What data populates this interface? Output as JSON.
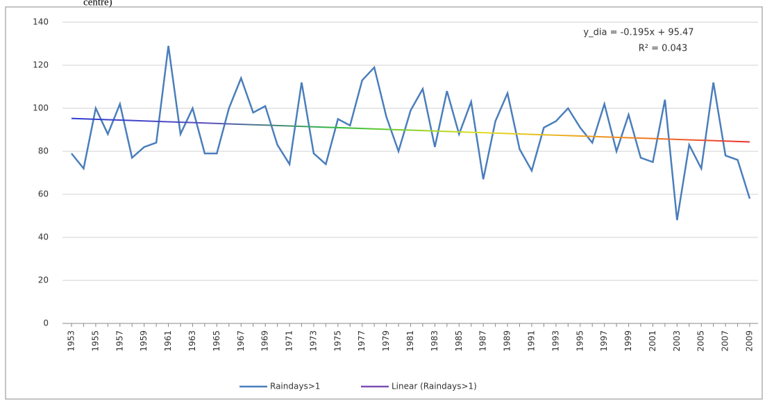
{
  "chart_data": {
    "type": "line",
    "caption": "centre)",
    "annotations": [
      "y_dia = -0.195x + 95.47",
      "R² = 0.043"
    ],
    "categories": [
      "1953",
      null,
      "1955",
      null,
      "1957",
      null,
      "1959",
      null,
      "1961",
      null,
      "1963",
      null,
      "1965",
      null,
      "1967",
      null,
      "1969",
      null,
      "1971",
      null,
      "1973",
      null,
      "1975",
      null,
      "1977",
      null,
      "1979",
      null,
      "1981",
      null,
      "1983",
      null,
      "1985",
      null,
      "1987",
      null,
      "1989",
      null,
      "1991",
      null,
      "1993",
      null,
      "1995",
      null,
      "1997",
      null,
      "1999",
      null,
      "2001",
      null,
      "2003",
      null,
      "2005",
      null,
      "2007",
      null,
      "2009"
    ],
    "series": [
      {
        "name": "Raindays>1",
        "color": "#4a7ebb",
        "values": [
          79,
          72,
          100,
          88,
          102,
          77,
          82,
          84,
          129,
          88,
          100,
          79,
          79,
          100,
          114,
          98,
          101,
          83,
          74,
          112,
          79,
          74,
          95,
          92,
          113,
          119,
          96,
          80,
          99,
          109,
          82,
          108,
          88,
          103,
          67,
          94,
          107,
          81,
          71,
          91,
          94,
          100,
          91,
          84,
          102,
          80,
          97,
          77,
          75,
          104,
          48,
          83,
          72,
          112,
          78,
          76,
          58
        ]
      },
      {
        "name": "Linear (Raindays>1)",
        "color": "#7a4fb5",
        "gradient": [
          "#2a3bd0",
          "#5a4fc0",
          "#2fbf3a",
          "#e0e020",
          "#f09020",
          "#e83030"
        ],
        "values": [
          95.28,
          95.08,
          94.89,
          94.69,
          94.5,
          94.3,
          94.11,
          93.91,
          93.72,
          93.52,
          93.33,
          93.13,
          92.94,
          92.74,
          92.55,
          92.35,
          92.16,
          91.96,
          91.77,
          91.57,
          91.38,
          91.18,
          90.99,
          90.79,
          90.6,
          90.4,
          90.21,
          90.01,
          89.82,
          89.62,
          89.43,
          89.23,
          89.04,
          88.84,
          88.65,
          88.45,
          88.26,
          88.06,
          87.87,
          87.67,
          87.48,
          87.28,
          87.09,
          86.89,
          86.7,
          86.5,
          86.31,
          86.11,
          85.92,
          85.72,
          85.53,
          85.33,
          85.14,
          84.94,
          84.75,
          84.55,
          84.36
        ]
      }
    ],
    "ylim": [
      0,
      140
    ],
    "yticks": [
      0,
      20,
      40,
      60,
      80,
      100,
      120,
      140
    ],
    "grid": true,
    "legend": "bottom"
  }
}
